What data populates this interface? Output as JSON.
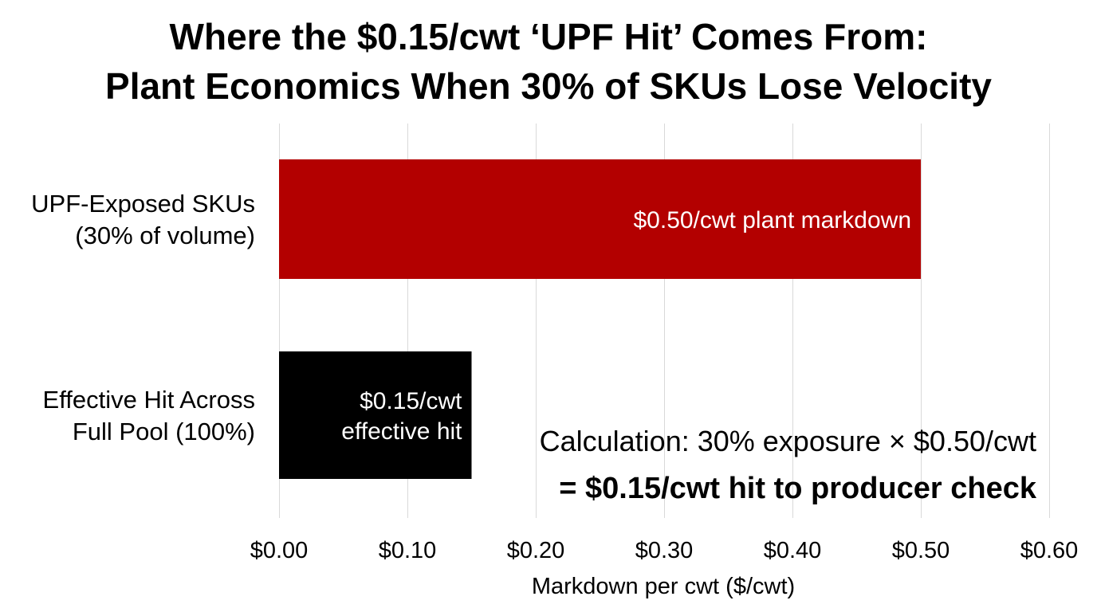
{
  "chart_data": {
    "type": "bar",
    "orientation": "horizontal",
    "title": [
      "Where the $0.15/cwt ‘UPF Hit’ Comes From:",
      "Plant Economics When 30% of SKUs Lose Velocity"
    ],
    "categories": [
      [
        "UPF-Exposed SKUs",
        "(30% of volume)"
      ],
      [
        "Effective Hit Across",
        "Full Pool (100%)"
      ]
    ],
    "values": [
      0.5,
      0.15
    ],
    "bar_colors": [
      "#b30000",
      "#000000"
    ],
    "data_labels": [
      [
        "$0.50/cwt plant markdown"
      ],
      [
        "$0.15/cwt",
        "effective hit"
      ]
    ],
    "xlabel": "Markdown per cwt ($/cwt)",
    "ylabel": "",
    "xlim": [
      0,
      0.6
    ],
    "xticks": [
      0.0,
      0.1,
      0.2,
      0.3,
      0.4,
      0.5,
      0.6
    ],
    "xtick_labels": [
      "$0.00",
      "$0.10",
      "$0.20",
      "$0.30",
      "$0.40",
      "$0.50",
      "$0.60"
    ],
    "grid": "vertical",
    "legend": "none",
    "annotation": {
      "line1": "Calculation: 30% exposure × $0.50/cwt",
      "line2": "= $0.15/cwt hit to producer check"
    }
  }
}
